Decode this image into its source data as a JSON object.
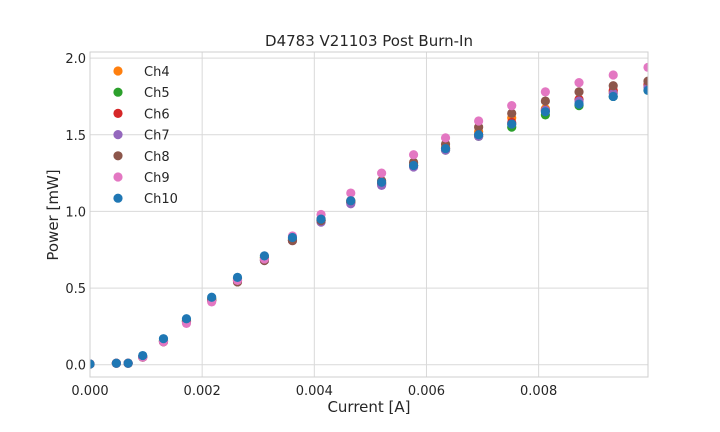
{
  "chart_data": {
    "type": "scatter",
    "title": "D4783 V21103 Post Burn-In",
    "xlabel": "Current [A]",
    "ylabel": "Power [mW]",
    "xlim": [
      0,
      0.00995
    ],
    "ylim": [
      -0.08,
      2.04
    ],
    "x_ticks": [
      "0.000",
      "0.002",
      "0.004",
      "0.006",
      "0.008"
    ],
    "x_tick_values": [
      0,
      0.002,
      0.004,
      0.006,
      0.008
    ],
    "y_ticks": [
      "0.0",
      "0.5",
      "1.0",
      "1.5",
      "2.0"
    ],
    "y_tick_values": [
      0,
      0.5,
      1.0,
      1.5,
      2.0
    ],
    "grid": true,
    "legend_position": "upper-left",
    "x": [
      0,
      0.00047,
      0.00068,
      0.00094,
      0.00131,
      0.00172,
      0.00217,
      0.00263,
      0.00311,
      0.00361,
      0.00412,
      0.00465,
      0.0052,
      0.00577,
      0.00634,
      0.00693,
      0.00752,
      0.00812,
      0.00872,
      0.00933,
      0.00995
    ],
    "series": [
      {
        "name": "Ch4",
        "color": "#ff7f0e",
        "values": [
          0.005,
          0.01,
          0.01,
          0.05,
          0.16,
          0.29,
          0.43,
          0.56,
          0.7,
          0.82,
          0.95,
          1.07,
          1.19,
          1.31,
          1.42,
          1.52,
          1.61,
          1.67,
          1.73,
          1.78,
          1.82
        ]
      },
      {
        "name": "Ch5",
        "color": "#2ca02c",
        "values": [
          0.005,
          0.01,
          0.01,
          0.05,
          0.16,
          0.29,
          0.43,
          0.56,
          0.7,
          0.82,
          0.94,
          1.06,
          1.18,
          1.3,
          1.4,
          1.49,
          1.55,
          1.63,
          1.69,
          1.75,
          1.79
        ]
      },
      {
        "name": "Ch6",
        "color": "#d62728",
        "values": [
          0.005,
          0.01,
          0.01,
          0.05,
          0.15,
          0.28,
          0.42,
          0.55,
          0.69,
          0.81,
          0.94,
          1.06,
          1.18,
          1.3,
          1.41,
          1.5,
          1.58,
          1.66,
          1.73,
          1.79,
          1.83
        ]
      },
      {
        "name": "Ch7",
        "color": "#9467bd",
        "values": [
          0.005,
          0.01,
          0.01,
          0.05,
          0.15,
          0.28,
          0.42,
          0.55,
          0.68,
          0.81,
          0.93,
          1.05,
          1.17,
          1.29,
          1.4,
          1.49,
          1.57,
          1.66,
          1.72,
          1.77,
          1.81
        ]
      },
      {
        "name": "Ch8",
        "color": "#8c564b",
        "values": [
          0.005,
          0.01,
          0.01,
          0.05,
          0.15,
          0.28,
          0.42,
          0.54,
          0.68,
          0.81,
          0.94,
          1.07,
          1.2,
          1.32,
          1.44,
          1.55,
          1.64,
          1.72,
          1.78,
          1.82,
          1.85
        ]
      },
      {
        "name": "Ch9",
        "color": "#e377c2",
        "values": [
          0.005,
          0.01,
          0.01,
          0.05,
          0.15,
          0.27,
          0.41,
          0.55,
          0.69,
          0.84,
          0.98,
          1.12,
          1.25,
          1.37,
          1.48,
          1.59,
          1.69,
          1.78,
          1.84,
          1.89,
          1.94
        ]
      },
      {
        "name": "Ch10",
        "color": "#1f77b4",
        "values": [
          0.005,
          0.01,
          0.01,
          0.06,
          0.17,
          0.3,
          0.44,
          0.57,
          0.71,
          0.83,
          0.95,
          1.07,
          1.19,
          1.3,
          1.41,
          1.5,
          1.57,
          1.65,
          1.7,
          1.75,
          1.79
        ]
      }
    ]
  }
}
